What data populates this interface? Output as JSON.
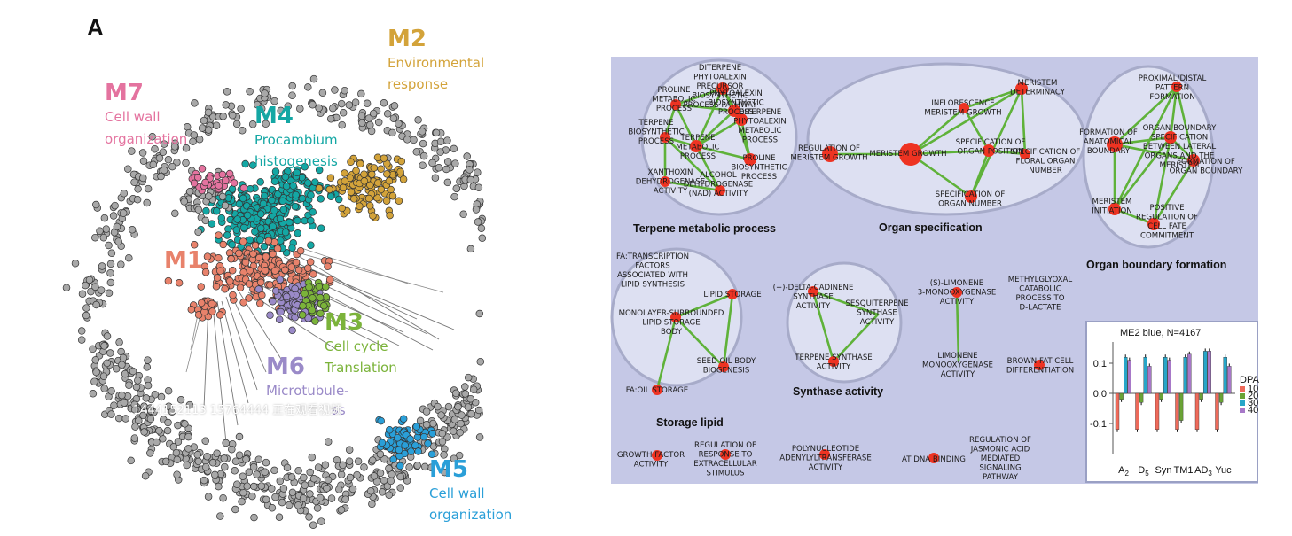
{
  "panel_a": {
    "letter": "A",
    "modules": {
      "m1": {
        "name": "M1",
        "desc": "",
        "color": "#e8826b"
      },
      "m2": {
        "name": "M2",
        "desc": "Environmental response",
        "desc_lines": [
          "Environmental",
          "response"
        ],
        "color": "#d3a33a"
      },
      "m3": {
        "name": "M3",
        "desc_lines": [
          "Cell cycle",
          "Translation"
        ],
        "color": "#7bb33a"
      },
      "m4": {
        "name": "M4",
        "desc_lines": [
          "Procambium",
          "histogenesis"
        ],
        "color": "#14a7a4"
      },
      "m5": {
        "name": "M5",
        "desc_lines": [
          "Cell wall",
          "organization"
        ],
        "color": "#2a9fd8"
      },
      "m6": {
        "name": "M6",
        "desc_lines": [
          "Microtubule-",
          "ss"
        ],
        "color": "#9a8ac8"
      },
      "m7": {
        "name": "M7",
        "desc_lines": [
          "Cell wall",
          "organization"
        ],
        "color": "#e4739f"
      }
    },
    "watermark": "1444152113 15764444 正在观看视频",
    "colors": {
      "node_default": "#a8a8a8",
      "edge": "#777777"
    }
  },
  "panel_b": {
    "colors": {
      "background": "#c5c8e6",
      "bubble": "#dde0f2",
      "bubble_stroke": "#a7abc9",
      "node": "#ee3322",
      "edge": "#5fb23a"
    },
    "groups": {
      "terpene": {
        "title": "Terpene metabolic process"
      },
      "organ_spec": {
        "title": "Organ specification"
      },
      "organ_boundary": {
        "title": "Organ boundary formation"
      },
      "storage": {
        "title": "Storage lipid"
      },
      "synthase": {
        "title": "Synthase activity"
      }
    },
    "labels": {
      "t1": [
        "DITERPENE",
        "PHYTOALEXIN",
        "PRECURSOR",
        "BIOSYNTHETIC",
        "PROCESS PATHWAY"
      ],
      "t2": [
        "PROLINE",
        "METABOLIC",
        "PROCESS"
      ],
      "t3": [
        "PHYTOALEXIN",
        "BIOSYNTHETIC",
        "PROCESS"
      ],
      "t4": [
        "DITERPENE",
        "PHYTOALEXIN",
        "METABOLIC",
        "PROCESS"
      ],
      "t5": [
        "TERPENE",
        "BIOSYNTHETIC",
        "PROCESS"
      ],
      "t6": [
        "TERPENE",
        "METABOLIC",
        "PROCESS"
      ],
      "t7": [
        "PROLINE",
        "BIOSYNTHETIC",
        "PROCESS"
      ],
      "t8": [
        "XANTHOXIN",
        "DEHYDROGENASE",
        "ACTIVITY"
      ],
      "t9": [
        "ALCOHOL",
        "DEHYDROGENASE",
        "(NAD) ACTIVITY"
      ],
      "o1": [
        "REGULATION OF",
        "MERISTEM GROWTH"
      ],
      "o2": [
        "MERISTEM GROWTH"
      ],
      "o3": [
        "INFLORESCENCE",
        "MERISTEM GROWTH"
      ],
      "o4": [
        "MERISTEM",
        "DETERMINACY"
      ],
      "o5": [
        "SPECIFICATION OF",
        "ORGAN POSITION"
      ],
      "o6": [
        "SPECIFICATION OF",
        "FLORAL ORGAN",
        "NUMBER"
      ],
      "o7": [
        "SPECIFICATION OF",
        "ORGAN NUMBER"
      ],
      "b1": [
        "PROXIMAL/DISTAL",
        "PATTERN",
        "FORMATION"
      ],
      "b2": [
        "FORMATION OF",
        "ANATOMICAL",
        "BOUNDARY"
      ],
      "b3": [
        "ORGAN BOUNDARY",
        "SPECIFICATION",
        "BETWEEN LATERAL",
        "ORGANS AND THE",
        "MERISTEM"
      ],
      "b4": [
        "FORMATION OF",
        "ORGAN BOUNDARY"
      ],
      "b5": [
        "MERISTEM",
        "INITIATION"
      ],
      "b6": [
        "POSITIVE",
        "REGULATION OF",
        "CELL FATE",
        "COMMITMENT"
      ],
      "s1": [
        "FA:TRANSCRIPTION",
        "FACTORS",
        "ASSOCIATED WITH",
        "LIPID SYNTHESIS"
      ],
      "s2": [
        "LIPID STORAGE"
      ],
      "s3": [
        "MONOLAYER-SURROUNDED",
        "LIPID STORAGE",
        "BODY"
      ],
      "s4": [
        "SEED OIL BODY",
        "BIOGENESIS"
      ],
      "s5": [
        "FA:OIL STORAGE"
      ],
      "y1": [
        "(+)-DELTA-CADINENE",
        "SYNTHASE",
        "ACTIVITY"
      ],
      "y2": [
        "SESQUITERPENE",
        "SYNTHASE",
        "ACTIVITY"
      ],
      "y3": [
        "TERPENE SYNTHASE",
        "ACTIVITY"
      ],
      "l1": [
        "(S)-LIMONENE",
        "3-MONOOXYGENASE",
        "ACTIVITY"
      ],
      "l2": [
        "LIMONENE",
        "MONOOXYGENASE",
        "ACTIVITY"
      ],
      "x1": [
        "METHYLGLYOXAL",
        "CATABOLIC",
        "PROCESS TO",
        "D-LACTATE"
      ],
      "x2": [
        "BROWN FAT CELL",
        "DIFFERENTIATION"
      ],
      "x3": [
        "GROWTH FACTOR",
        "ACTIVITY"
      ],
      "x4": [
        "REGULATION OF",
        "RESPONSE TO",
        "EXTRACELLULAR",
        "STIMULUS"
      ],
      "x5": [
        "POLYNUCLEOTIDE",
        "ADENYLYLTRANSFERASE",
        "ACTIVITY"
      ],
      "x6": [
        "AT DNA BINDING"
      ],
      "x7": [
        "REGULATION OF",
        "JASMONIC ACID",
        "MEDIATED",
        "SIGNALING",
        "PATHWAY"
      ]
    }
  },
  "inset": {
    "title": "ME2 blue, N=4167",
    "y_ticks": [
      "0.1",
      "0.0",
      "-0.1"
    ],
    "legend_title": "DPA",
    "legend_items": [
      "10",
      "20",
      "30",
      "40"
    ],
    "legend_colors": [
      "#ee6a5a",
      "#6aa335",
      "#26a6c8",
      "#a778c8"
    ],
    "categories": [
      "A2",
      "D5",
      "Syn",
      "TM1",
      "AD3",
      "Yuc"
    ]
  },
  "chart_data": {
    "type": "bar",
    "title": "ME2 blue, N=4167",
    "categories": [
      "A2",
      "D5",
      "Syn",
      "TM1",
      "AD3",
      "Yuc"
    ],
    "ylim": [
      -0.15,
      0.15
    ],
    "legend_title": "DPA",
    "legend_position": "right",
    "series": [
      {
        "name": "10",
        "values": [
          -0.12,
          -0.12,
          -0.12,
          -0.12,
          -0.12,
          -0.12
        ]
      },
      {
        "name": "20",
        "values": [
          -0.02,
          -0.03,
          -0.02,
          -0.09,
          -0.02,
          -0.03
        ]
      },
      {
        "name": "30",
        "values": [
          0.12,
          0.12,
          0.12,
          0.12,
          0.14,
          0.12
        ]
      },
      {
        "name": "40",
        "values": [
          0.11,
          0.09,
          0.11,
          0.13,
          0.14,
          0.09
        ]
      }
    ]
  }
}
